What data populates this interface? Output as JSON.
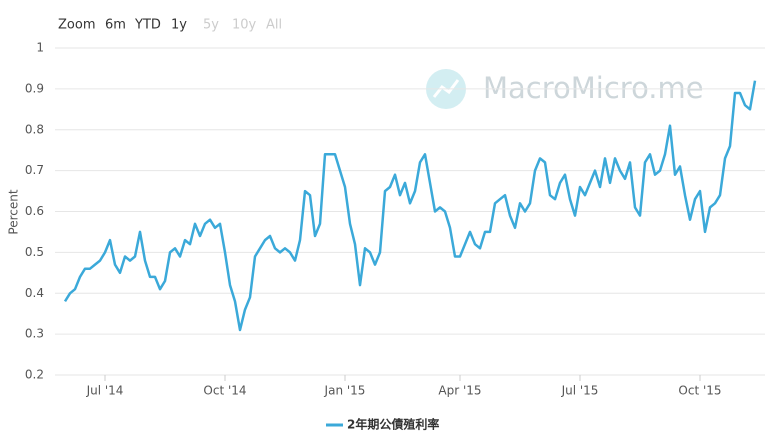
{
  "range_selector": {
    "label": "Zoom",
    "buttons": [
      "6m",
      "YTD",
      "1y",
      "5y",
      "10y",
      "All"
    ]
  },
  "chart_data": {
    "type": "line",
    "watermark": "MacroMicro.me",
    "ylabel": "Percent",
    "categories": [
      null,
      null,
      null,
      null,
      null,
      null,
      null,
      null,
      "Jul '14",
      null,
      null,
      null,
      null,
      null,
      null,
      null,
      null,
      null,
      null,
      null,
      null,
      null,
      null,
      null,
      null,
      null,
      null,
      null,
      null,
      null,
      null,
      null,
      "Oct '14",
      null,
      null,
      null,
      null,
      null,
      null,
      null,
      null,
      null,
      null,
      null,
      null,
      null,
      null,
      null,
      null,
      null,
      null,
      null,
      null,
      null,
      null,
      null,
      "Jan '15",
      null,
      null,
      null,
      null,
      null,
      null,
      null,
      null,
      null,
      null,
      null,
      null,
      null,
      null,
      null,
      null,
      null,
      null,
      null,
      null,
      null,
      null,
      "Apr '15",
      null,
      null,
      null,
      null,
      null,
      null,
      null,
      null,
      null,
      null,
      null,
      null,
      null,
      null,
      null,
      null,
      null,
      null,
      null,
      null,
      null,
      null,
      null,
      "Jul '15",
      null,
      null,
      null,
      null,
      null,
      null,
      null,
      null,
      null,
      null,
      null,
      null,
      null,
      null,
      null,
      null,
      null,
      null,
      null,
      null,
      null,
      null,
      null,
      "Oct '15",
      null,
      null,
      null,
      null,
      null,
      null,
      null,
      null,
      null,
      null,
      null
    ],
    "series": [
      {
        "name": "2年期公債殖利率",
        "color": "#3ba9d9",
        "values": [
          0.38,
          0.4,
          0.41,
          0.44,
          0.46,
          0.46,
          0.47,
          0.48,
          0.5,
          0.53,
          0.47,
          0.45,
          0.49,
          0.48,
          0.49,
          0.55,
          0.48,
          0.44,
          0.44,
          0.41,
          0.43,
          0.5,
          0.51,
          0.49,
          0.53,
          0.52,
          0.57,
          0.54,
          0.57,
          0.58,
          0.56,
          0.57,
          0.5,
          0.42,
          0.38,
          0.31,
          0.36,
          0.39,
          0.49,
          0.51,
          0.53,
          0.54,
          0.51,
          0.5,
          0.51,
          0.5,
          0.48,
          0.53,
          0.65,
          0.64,
          0.54,
          0.57,
          0.74,
          0.74,
          0.74,
          0.7,
          0.66,
          0.57,
          0.52,
          0.42,
          0.51,
          0.5,
          0.47,
          0.5,
          0.65,
          0.66,
          0.69,
          0.64,
          0.67,
          0.62,
          0.65,
          0.72,
          0.74,
          0.67,
          0.6,
          0.61,
          0.6,
          0.56,
          0.49,
          0.49,
          0.52,
          0.55,
          0.52,
          0.51,
          0.55,
          0.55,
          0.62,
          0.63,
          0.64,
          0.59,
          0.56,
          0.62,
          0.6,
          0.62,
          0.7,
          0.73,
          0.72,
          0.64,
          0.63,
          0.67,
          0.69,
          0.63,
          0.59,
          0.66,
          0.64,
          0.67,
          0.7,
          0.66,
          0.73,
          0.67,
          0.73,
          0.7,
          0.68,
          0.72,
          0.61,
          0.59,
          0.72,
          0.74,
          0.69,
          0.7,
          0.74,
          0.81,
          0.69,
          0.71,
          0.64,
          0.58,
          0.63,
          0.65,
          0.55,
          0.61,
          0.62,
          0.64,
          0.73,
          0.76,
          0.89,
          0.89,
          0.86,
          0.85,
          0.92
        ]
      }
    ],
    "ylim": [
      0.2,
      1
    ],
    "yticks": [
      0.2,
      0.3,
      0.4,
      0.5,
      0.6,
      0.7,
      0.8,
      0.9,
      1
    ],
    "grid": true
  }
}
